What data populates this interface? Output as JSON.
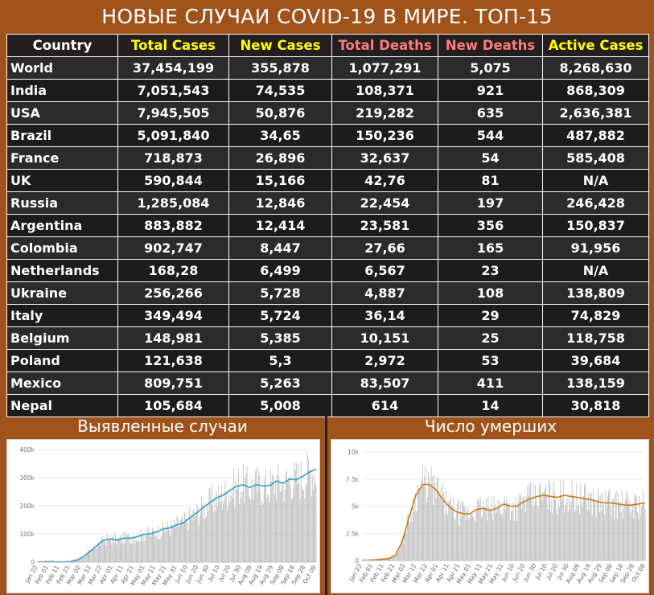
{
  "title": "НОВЫЕ СЛУЧАИ COVID-19 В МИРЕ. ТОП-15",
  "colors": {
    "background": "#a0521b",
    "table_bg": "#231f20",
    "header_yellow": "#ffff00",
    "header_red": "#ff7b7b",
    "cases_line": "#2e9fc4",
    "deaths_line": "#c97a16",
    "bars": "#bdbdbd"
  },
  "table": {
    "headers": [
      "Country",
      "Total Cases",
      "New Cases",
      "Total Deaths",
      "New Deaths",
      "Active Cases"
    ],
    "rows": [
      [
        "World",
        "37,454,199",
        "355,878",
        "1,077,291",
        "5,075",
        "8,268,630"
      ],
      [
        "India",
        "7,051,543",
        "74,535",
        "108,371",
        "921",
        "868,309"
      ],
      [
        "USA",
        "7,945,505",
        "50,876",
        "219,282",
        "635",
        "2,636,381"
      ],
      [
        "Brazil",
        "5,091,840",
        "34,65",
        "150,236",
        "544",
        "487,882"
      ],
      [
        "France",
        "718,873",
        "26,896",
        "32,637",
        "54",
        "585,408"
      ],
      [
        "UK",
        "590,844",
        "15,166",
        "42,76",
        "81",
        "N/A"
      ],
      [
        "Russia",
        "1,285,084",
        "12,846",
        "22,454",
        "197",
        "246,428"
      ],
      [
        "Argentina",
        "883,882",
        "12,414",
        "23,581",
        "356",
        "150,837"
      ],
      [
        "Colombia",
        "902,747",
        "8,447",
        "27,66",
        "165",
        "91,956"
      ],
      [
        "Netherlands",
        "168,28",
        "6,499",
        "6,567",
        "23",
        "N/A"
      ],
      [
        "Ukraine",
        "256,266",
        "5,728",
        "4,887",
        "108",
        "138,809"
      ],
      [
        "Italy",
        "349,494",
        "5,724",
        "36,14",
        "29",
        "74,829"
      ],
      [
        "Belgium",
        "148,981",
        "5,385",
        "10,151",
        "25",
        "118,758"
      ],
      [
        "Poland",
        "121,638",
        "5,3",
        "2,972",
        "53",
        "39,684"
      ],
      [
        "Mexico",
        "809,751",
        "5,263",
        "83,507",
        "411",
        "138,159"
      ],
      [
        "Nepal",
        "105,684",
        "5,008",
        "614",
        "14",
        "30,818"
      ]
    ]
  },
  "chart_data": [
    {
      "type": "bar",
      "title": "Выявленные случаи",
      "series": [
        {
          "kind": "bar"
        },
        {
          "kind": "line"
        }
      ],
      "x_tick_labels": [
        "Jan 22",
        "Feb 01",
        "Feb 11",
        "Feb 21",
        "Mar 02",
        "Mar 12",
        "Mar 22",
        "Apr 01",
        "Apr 11",
        "Apr 21",
        "May 01",
        "May 11",
        "May 21",
        "May 31",
        "Jun 10",
        "Jun 20",
        "Jun 30",
        "Jul 10",
        "Jul 20",
        "Jul 30",
        "Aug 09",
        "Aug 19",
        "Aug 29",
        "Sep 08",
        "Sep 18",
        "Sep 28",
        "Oct 08"
      ],
      "y_tick_labels": [
        "0",
        "100k",
        "200k",
        "300k",
        "400k"
      ],
      "ylim": [
        0,
        400000
      ],
      "grid": true,
      "weekly_points": [
        [
          0,
          600
        ],
        [
          7,
          1500
        ],
        [
          14,
          2000
        ],
        [
          21,
          500
        ],
        [
          28,
          800
        ],
        [
          35,
          2000
        ],
        [
          42,
          8000
        ],
        [
          49,
          20000
        ],
        [
          56,
          40000
        ],
        [
          63,
          60000
        ],
        [
          70,
          78000
        ],
        [
          77,
          82000
        ],
        [
          84,
          78000
        ],
        [
          91,
          85000
        ],
        [
          98,
          85000
        ],
        [
          105,
          90000
        ],
        [
          112,
          98000
        ],
        [
          119,
          100000
        ],
        [
          126,
          108000
        ],
        [
          133,
          118000
        ],
        [
          140,
          122000
        ],
        [
          147,
          132000
        ],
        [
          154,
          140000
        ],
        [
          161,
          158000
        ],
        [
          168,
          175000
        ],
        [
          175,
          195000
        ],
        [
          182,
          212000
        ],
        [
          189,
          228000
        ],
        [
          196,
          238000
        ],
        [
          203,
          255000
        ],
        [
          210,
          270000
        ],
        [
          217,
          275000
        ],
        [
          224,
          265000
        ],
        [
          231,
          275000
        ],
        [
          238,
          270000
        ],
        [
          245,
          272000
        ],
        [
          252,
          288000
        ],
        [
          259,
          280000
        ],
        [
          266,
          295000
        ],
        [
          273,
          292000
        ],
        [
          280,
          305000
        ],
        [
          287,
          320000
        ],
        [
          294,
          330000
        ]
      ]
    },
    {
      "type": "bar",
      "title": "Число умерших",
      "series": [
        {
          "kind": "bar"
        },
        {
          "kind": "line"
        }
      ],
      "x_tick_labels": [
        "Jan 22",
        "Feb 01",
        "Feb 11",
        "Feb 21",
        "Mar 02",
        "Mar 12",
        "Mar 22",
        "Apr 01",
        "Apr 11",
        "Apr 21",
        "May 01",
        "May 11",
        "May 21",
        "May 31",
        "Jun 10",
        "Jun 20",
        "Jun 30",
        "Jul 10",
        "Jul 20",
        "Jul 30",
        "Aug 09",
        "Aug 19",
        "Aug 29",
        "Sep 08",
        "Sep 18",
        "Sep 28",
        "Oct 08"
      ],
      "y_tick_labels": [
        "0",
        "2.5k",
        "5k",
        "7.5k",
        "10k"
      ],
      "ylim": [
        0,
        10000
      ],
      "grid": true,
      "weekly_points": [
        [
          0,
          15
        ],
        [
          7,
          30
        ],
        [
          14,
          70
        ],
        [
          21,
          120
        ],
        [
          28,
          180
        ],
        [
          35,
          500
        ],
        [
          42,
          1800
        ],
        [
          49,
          4000
        ],
        [
          56,
          6000
        ],
        [
          63,
          7000
        ],
        [
          70,
          7000
        ],
        [
          77,
          6500
        ],
        [
          84,
          5600
        ],
        [
          91,
          4900
        ],
        [
          98,
          4500
        ],
        [
          105,
          4300
        ],
        [
          112,
          4300
        ],
        [
          119,
          4700
        ],
        [
          126,
          4800
        ],
        [
          133,
          4600
        ],
        [
          140,
          4800
        ],
        [
          147,
          5200
        ],
        [
          154,
          5000
        ],
        [
          161,
          5000
        ],
        [
          168,
          5400
        ],
        [
          175,
          5700
        ],
        [
          182,
          5900
        ],
        [
          189,
          6000
        ],
        [
          196,
          5900
        ],
        [
          203,
          5800
        ],
        [
          210,
          6000
        ],
        [
          217,
          5900
        ],
        [
          224,
          5800
        ],
        [
          231,
          5700
        ],
        [
          238,
          5600
        ],
        [
          245,
          5400
        ],
        [
          252,
          5300
        ],
        [
          259,
          5300
        ],
        [
          266,
          5200
        ],
        [
          273,
          5100
        ],
        [
          280,
          5100
        ],
        [
          287,
          5200
        ],
        [
          294,
          5300
        ]
      ]
    }
  ]
}
